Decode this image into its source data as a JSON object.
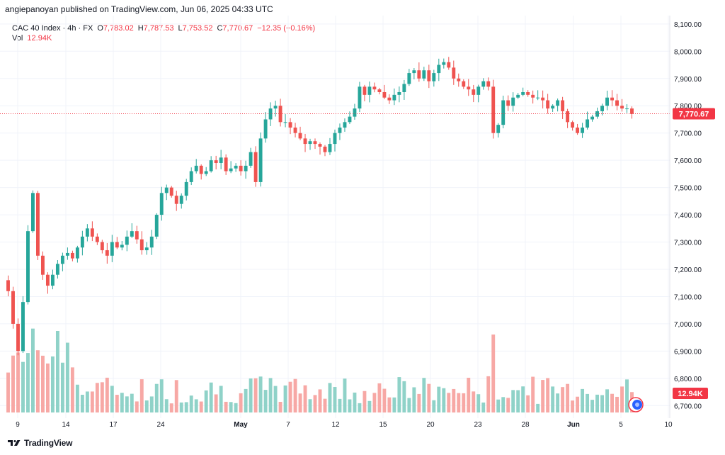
{
  "header": {
    "published_by": "angiepanoyan published on TradingView.com, Jun 06, 2025 04:33 UTC"
  },
  "legend": {
    "symbol": "CAC 40 Index · 4h · FX",
    "open_label": "O",
    "open": "7,783.02",
    "high_label": "H",
    "high": "7,787.53",
    "low_label": "L",
    "low": "7,753.52",
    "close_label": "C",
    "close": "7,770.67",
    "change": "−12.35 (−0.16%)",
    "vol_label": "Vol",
    "vol_value": "12.94K"
  },
  "footer": {
    "brand": "TradingView"
  },
  "colors": {
    "up": "#26a69a",
    "down": "#ef5350",
    "vol_up": "#8fd2c8",
    "vol_down": "#f7a8a5",
    "last_price": "#f23645"
  },
  "chart_data": {
    "type": "candlestick",
    "price_axis": {
      "ticks": [
        "8,100.00",
        "8,000.00",
        "7,900.00",
        "7,800.00",
        "7,700.00",
        "7,600.00",
        "7,500.00",
        "7,400.00",
        "7,300.00",
        "7,200.00",
        "7,100.00",
        "7,000.00",
        "6,900.00",
        "6,800.00",
        "6,700.00"
      ],
      "range": [
        6680,
        8110
      ]
    },
    "time_axis": [
      "9",
      "14",
      "17",
      "24",
      "May",
      "7",
      "12",
      "15",
      "20",
      "23",
      "28",
      "Jun",
      "5",
      "10"
    ],
    "last_price_label": "7,770.67",
    "volume_label": "12.94K",
    "close": [
      7120,
      7000,
      6900,
      7080,
      7340,
      7480,
      7250,
      7180,
      7140,
      7180,
      7220,
      7250,
      7260,
      7240,
      7280,
      7320,
      7350,
      7320,
      7300,
      7270,
      7250,
      7300,
      7280,
      7290,
      7320,
      7340,
      7310,
      7270,
      7280,
      7320,
      7400,
      7480,
      7500,
      7470,
      7440,
      7470,
      7520,
      7560,
      7580,
      7550,
      7560,
      7600,
      7590,
      7610,
      7560,
      7570,
      7580,
      7560,
      7580,
      7630,
      7520,
      7680,
      7750,
      7790,
      7800,
      7740,
      7740,
      7720,
      7700,
      7680,
      7660,
      7670,
      7660,
      7650,
      7630,
      7660,
      7700,
      7720,
      7740,
      7760,
      7790,
      7870,
      7840,
      7870,
      7860,
      7850,
      7830,
      7820,
      7840,
      7850,
      7880,
      7920,
      7930,
      7900,
      7930,
      7890,
      7920,
      7950,
      7960,
      7940,
      7900,
      7890,
      7870,
      7860,
      7840,
      7870,
      7890,
      7870,
      7700,
      7730,
      7820,
      7800,
      7830,
      7840,
      7850,
      7840,
      7830,
      7830,
      7820,
      7790,
      7800,
      7820,
      7780,
      7740,
      7720,
      7700,
      7720,
      7750,
      7760,
      7780,
      7800,
      7830,
      7820,
      7800,
      7790,
      7790,
      7770
    ]
  }
}
